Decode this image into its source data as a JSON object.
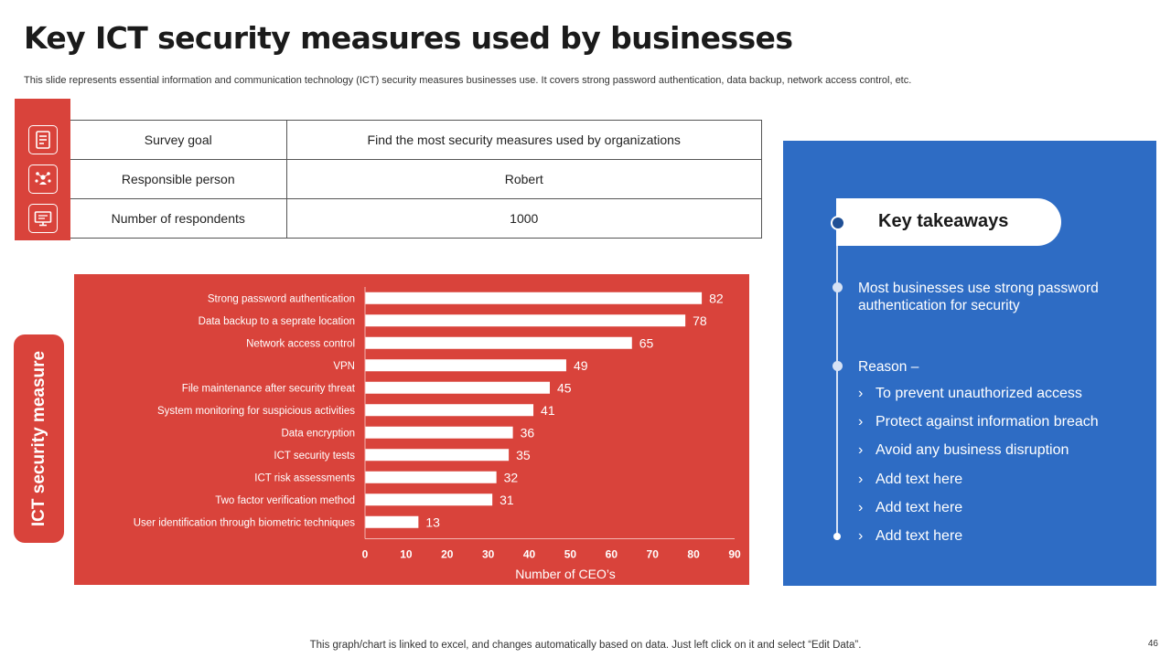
{
  "title": "Key ICT security measures used by businesses",
  "subtitle": "This slide represents essential information and communication technology (ICT) security measures businesses use. It covers strong password authentication, data backup, network access control, etc.",
  "info_table": {
    "icons": [
      "document-icon",
      "team-network-icon",
      "monitor-icon"
    ],
    "rows": [
      {
        "label": "Survey goal",
        "value": "Find the most security measures used by organizations"
      },
      {
        "label": "Responsible person",
        "value": "Robert"
      },
      {
        "label": "Number of respondents",
        "value": "1000"
      }
    ]
  },
  "side_label": "ICT security measure",
  "chart_data": {
    "type": "bar",
    "orientation": "horizontal",
    "categories": [
      "Strong password authentication",
      "Data backup to a seprate location",
      "Network access control",
      "VPN",
      "File maintenance after security threat",
      "System monitoring for suspicious activities",
      "Data encryption",
      "ICT security tests",
      "ICT risk assessments",
      "Two factor  verification method",
      "User identification through biometric techniques"
    ],
    "values": [
      82,
      78,
      65,
      49,
      45,
      41,
      36,
      35,
      32,
      31,
      13
    ],
    "xlabel": "Number of CEO’s",
    "xlim": [
      0,
      90
    ],
    "xticks": [
      0,
      10,
      20,
      30,
      40,
      50,
      60,
      70,
      80,
      90
    ],
    "grid": false,
    "bar_color": "#ffffff",
    "background": "#d9433b"
  },
  "takeaways": {
    "heading": "Key takeaways",
    "point": "Most businesses use strong password authentication  for security",
    "reason_label": "Reason –",
    "chevron": "›",
    "bullets": [
      "To prevent unauthorized  access",
      "Protect against information breach",
      "Avoid any business disruption",
      "Add text here",
      "Add text here",
      "Add text here"
    ],
    "panel_color": "#2e6cc4"
  },
  "footer": "This graph/chart is linked to excel,  and changes automatically based on data. Just left click on it and select “Edit Data”.",
  "page_number": "46"
}
